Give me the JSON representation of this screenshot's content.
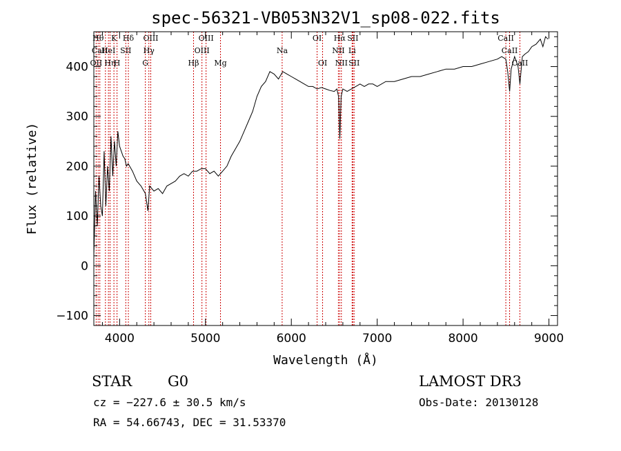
{
  "chart_data": {
    "type": "line",
    "title": "spec-56321-VB053N32V1_sp08-022.fits",
    "xlabel": "Wavelength (Å)",
    "ylabel": "Flux (relative)",
    "xlim": [
      3700,
      9100
    ],
    "ylim": [
      -120,
      470
    ],
    "x_ticks": [
      4000,
      5000,
      6000,
      7000,
      8000,
      9000
    ],
    "y_ticks": [
      -100,
      0,
      100,
      200,
      300,
      400
    ],
    "x_tick_labels": [
      "4000",
      "5000",
      "6000",
      "7000",
      "8000",
      "9000"
    ],
    "y_tick_labels": [
      "−100",
      "0",
      "100",
      "200",
      "300",
      "400"
    ],
    "grid": false,
    "line_color": "#000000",
    "marker_color": "#cc0000",
    "series": [
      {
        "x": [
          3700,
          3720,
          3740,
          3760,
          3780,
          3800,
          3820,
          3840,
          3860,
          3880,
          3900,
          3920,
          3940,
          3960,
          3980,
          4000,
          4020,
          4040,
          4060,
          4080,
          4100,
          4150,
          4200,
          4250,
          4300,
          4330,
          4350,
          4400,
          4450,
          4500,
          4550,
          4600,
          4650,
          4700,
          4750,
          4800,
          4850,
          4900,
          4950,
          5000,
          5050,
          5100,
          5150,
          5200,
          5250,
          5300,
          5350,
          5400,
          5450,
          5500,
          5550,
          5600,
          5650,
          5700,
          5750,
          5800,
          5850,
          5900,
          5950,
          6000,
          6050,
          6100,
          6150,
          6200,
          6250,
          6300,
          6350,
          6400,
          6450,
          6500,
          6530,
          6550,
          6565,
          6580,
          6600,
          6650,
          6700,
          6750,
          6800,
          6850,
          6900,
          6950,
          7000,
          7100,
          7200,
          7300,
          7400,
          7500,
          7600,
          7700,
          7800,
          7900,
          8000,
          8100,
          8200,
          8300,
          8400,
          8450,
          8498,
          8520,
          8542,
          8560,
          8600,
          8640,
          8662,
          8690,
          8720,
          8760,
          8800,
          8850,
          8900,
          8930,
          8960,
          8990
        ],
        "y": [
          20,
          150,
          80,
          180,
          120,
          100,
          230,
          120,
          200,
          150,
          260,
          180,
          250,
          200,
          270,
          240,
          230,
          220,
          215,
          200,
          205,
          190,
          170,
          160,
          145,
          110,
          160,
          150,
          155,
          145,
          160,
          165,
          170,
          180,
          185,
          180,
          190,
          190,
          195,
          195,
          185,
          190,
          180,
          190,
          200,
          220,
          235,
          250,
          270,
          290,
          310,
          340,
          360,
          370,
          390,
          385,
          375,
          390,
          385,
          380,
          375,
          370,
          365,
          360,
          360,
          355,
          358,
          355,
          352,
          350,
          355,
          340,
          255,
          340,
          355,
          350,
          355,
          360,
          365,
          360,
          365,
          365,
          360,
          370,
          370,
          375,
          380,
          380,
          385,
          390,
          395,
          395,
          400,
          400,
          405,
          410,
          415,
          420,
          415,
          390,
          350,
          395,
          420,
          400,
          365,
          420,
          425,
          430,
          440,
          445,
          455,
          440,
          460,
          455
        ]
      }
    ],
    "line_markers": [
      {
        "wave": 3727,
        "label": "OII",
        "row": 2
      },
      {
        "wave": 3750,
        "label": "Hθ",
        "row": 0
      },
      {
        "wave": 3770,
        "label": "CaII",
        "row": 1
      },
      {
        "wave": 3835,
        "label": "",
        "row": 0
      },
      {
        "wave": 3870,
        "label": "HeI",
        "row": 1
      },
      {
        "wave": 3889,
        "label": "Hη",
        "row": 2
      },
      {
        "wave": 3934,
        "label": "K",
        "row": 0
      },
      {
        "wave": 3970,
        "label": "H",
        "row": 2
      },
      {
        "wave": 4072,
        "label": "SII",
        "row": 1
      },
      {
        "wave": 4102,
        "label": "Hδ",
        "row": 0
      },
      {
        "wave": 4300,
        "label": "G",
        "row": 2
      },
      {
        "wave": 4341,
        "label": "Hγ",
        "row": 1
      },
      {
        "wave": 4363,
        "label": "OIII",
        "row": 0
      },
      {
        "wave": 4861,
        "label": "Hβ",
        "row": 2
      },
      {
        "wave": 4959,
        "label": "OIII",
        "row": 1
      },
      {
        "wave": 5007,
        "label": "OIII",
        "row": 0
      },
      {
        "wave": 5175,
        "label": "Mg",
        "row": 2
      },
      {
        "wave": 5893,
        "label": "Na",
        "row": 1
      },
      {
        "wave": 6300,
        "label": "OI",
        "row": 0
      },
      {
        "wave": 6364,
        "label": "OI",
        "row": 2
      },
      {
        "wave": 6548,
        "label": "NII",
        "row": 1
      },
      {
        "wave": 6563,
        "label": "Hα",
        "row": 0
      },
      {
        "wave": 6583,
        "label": "NII",
        "row": 2
      },
      {
        "wave": 6708,
        "label": "Li",
        "row": 1
      },
      {
        "wave": 6716,
        "label": "SII",
        "row": 0
      },
      {
        "wave": 6731,
        "label": "SII",
        "row": 2
      },
      {
        "wave": 8498,
        "label": "CaII",
        "row": 0
      },
      {
        "wave": 8542,
        "label": "CaII",
        "row": 1
      },
      {
        "wave": 8662,
        "label": "CaII",
        "row": 2
      }
    ]
  },
  "info": {
    "class": "STAR",
    "subclass": "G0",
    "survey": "LAMOST DR3",
    "cz": "cz = −227.6 ± 30.5 km/s",
    "obs_date": "Obs-Date: 20130128",
    "radec": "RA =  54.66743, DEC =  31.53370"
  }
}
